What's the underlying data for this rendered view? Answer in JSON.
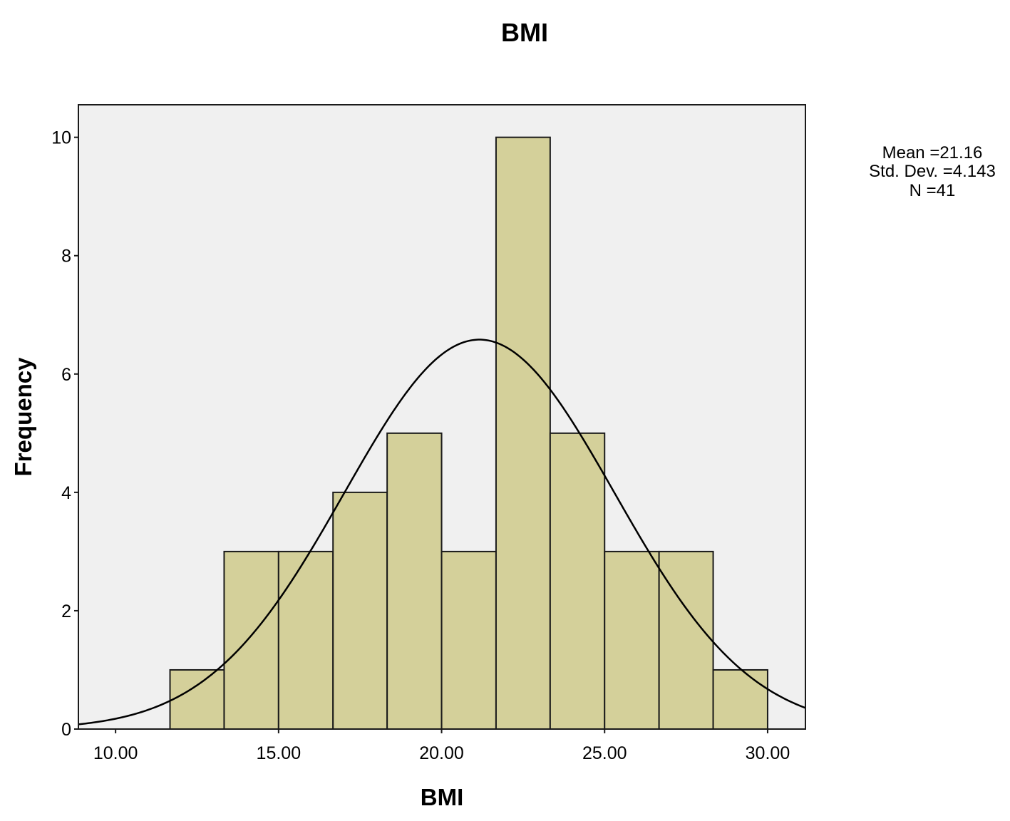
{
  "chart_data": {
    "type": "bar",
    "title": "BMI",
    "xlabel": "BMI",
    "ylabel": "Frequency",
    "xlim": [
      8.86,
      31.16
    ],
    "ylim": [
      0,
      10.55
    ],
    "x_ticks": [
      {
        "value": 10,
        "label": "10.00"
      },
      {
        "value": 15,
        "label": "15.00"
      },
      {
        "value": 20,
        "label": "20.00"
      },
      {
        "value": 25,
        "label": "25.00"
      },
      {
        "value": 30,
        "label": "30.00"
      }
    ],
    "y_ticks": [
      {
        "value": 0,
        "label": "0"
      },
      {
        "value": 2,
        "label": "2"
      },
      {
        "value": 4,
        "label": "4"
      },
      {
        "value": 6,
        "label": "6"
      },
      {
        "value": 8,
        "label": "8"
      },
      {
        "value": 10,
        "label": "10"
      }
    ],
    "bins": [
      {
        "start": 11.67,
        "end": 13.33,
        "count": 1
      },
      {
        "start": 13.33,
        "end": 15.0,
        "count": 3
      },
      {
        "start": 15.0,
        "end": 16.67,
        "count": 3
      },
      {
        "start": 16.67,
        "end": 18.33,
        "count": 4
      },
      {
        "start": 18.33,
        "end": 20.0,
        "count": 5
      },
      {
        "start": 20.0,
        "end": 21.67,
        "count": 3
      },
      {
        "start": 21.67,
        "end": 23.33,
        "count": 10
      },
      {
        "start": 23.33,
        "end": 25.0,
        "count": 5
      },
      {
        "start": 25.0,
        "end": 26.67,
        "count": 3
      },
      {
        "start": 26.67,
        "end": 28.33,
        "count": 3
      },
      {
        "start": 28.33,
        "end": 30.0,
        "count": 1
      }
    ],
    "normal_curve": {
      "mean": 21.16,
      "std_dev": 4.143,
      "n": 41,
      "bin_width": 1.667
    },
    "stats": {
      "mean_label": "Mean =21.16",
      "std_label": "Std. Dev. =4.143",
      "n_label": "N =41"
    },
    "grid": false,
    "colors": {
      "plot_background": "#f0f0f0",
      "bar_fill": "#d4d09a",
      "bar_stroke": "#1a1a1a",
      "curve": "#000000"
    }
  }
}
